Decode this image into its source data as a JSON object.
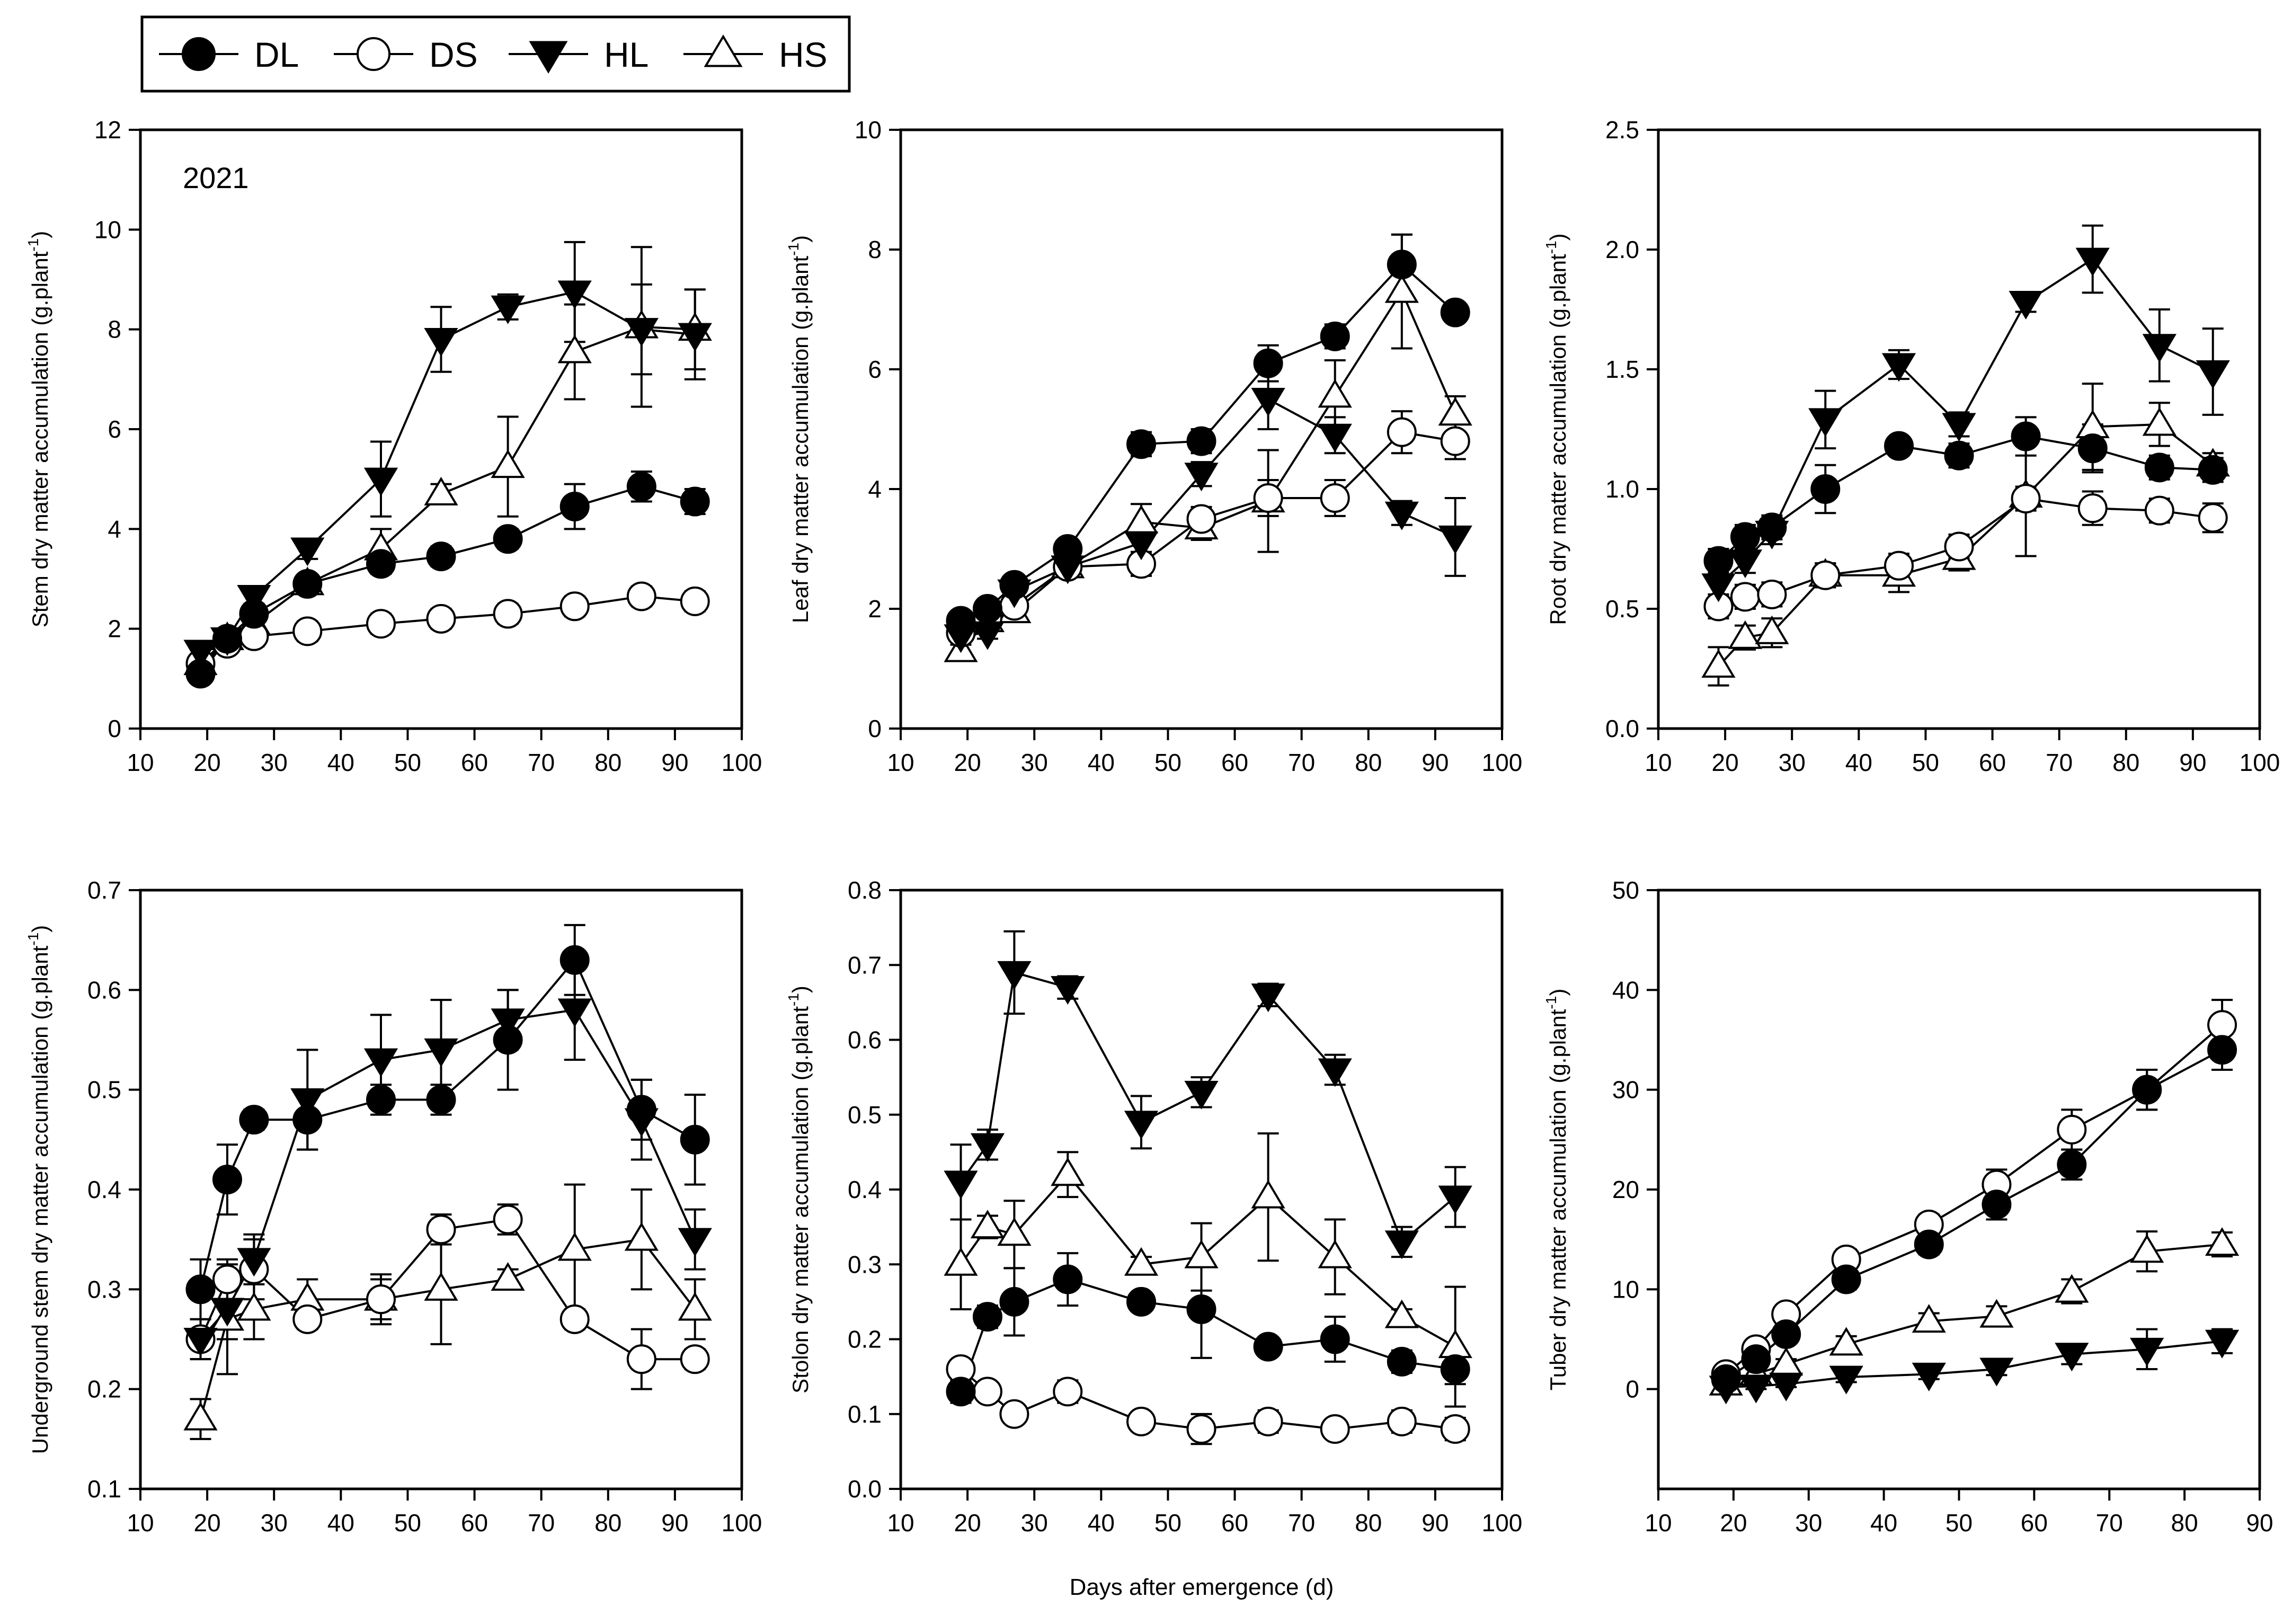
{
  "legend": [
    {
      "label": "DL",
      "marker": "circle",
      "fill": "#000000"
    },
    {
      "label": "DS",
      "marker": "circle",
      "fill": "#ffffff"
    },
    {
      "label": "HL",
      "marker": "triangle-down",
      "fill": "#000000"
    },
    {
      "label": "HS",
      "marker": "triangle-up",
      "fill": "#ffffff"
    }
  ],
  "xlabel_common": "Days after emergence (d)",
  "chart_data": [
    {
      "type": "line",
      "panel_label": "2021",
      "ylabel": "Stem dry matter accumulation (g.plant",
      "ylabel_sup": "-1",
      "ylabel_close": ")",
      "xlim": [
        10,
        100
      ],
      "xticks": [
        10,
        20,
        30,
        40,
        50,
        60,
        70,
        80,
        90,
        100
      ],
      "ylim": [
        0,
        12
      ],
      "yticks": [
        0,
        2,
        4,
        6,
        8,
        10,
        12
      ],
      "series": [
        {
          "name": "DL",
          "x": [
            19,
            23,
            27,
            35,
            46,
            55,
            65,
            75,
            85,
            93
          ],
          "y": [
            1.1,
            1.8,
            2.3,
            2.9,
            3.3,
            3.45,
            3.8,
            4.45,
            4.85,
            4.55
          ],
          "err": [
            0.1,
            0.1,
            0.15,
            0.15,
            0.2,
            0.2,
            0.2,
            0.45,
            0.3,
            0.25
          ]
        },
        {
          "name": "DS",
          "x": [
            19,
            23,
            27,
            35,
            46,
            55,
            65,
            75,
            85,
            93
          ],
          "y": [
            1.3,
            1.7,
            1.85,
            1.95,
            2.1,
            2.2,
            2.3,
            2.45,
            2.65,
            2.55
          ],
          "err": [
            0.1,
            0.15,
            0.2,
            0.2,
            0.2,
            0.2,
            0.2,
            0.2,
            0.2,
            0.2
          ]
        },
        {
          "name": "HL",
          "x": [
            19,
            23,
            27,
            35,
            46,
            55,
            65,
            75,
            85,
            93
          ],
          "y": [
            1.55,
            1.8,
            2.65,
            3.6,
            5.0,
            7.8,
            8.45,
            8.75,
            8.0,
            7.9
          ],
          "err": [
            0.1,
            0.1,
            0.15,
            0.2,
            0.75,
            0.65,
            0.25,
            1.0,
            0.9,
            0.9
          ]
        },
        {
          "name": "HS",
          "x": [
            19,
            23,
            27,
            35,
            46,
            55,
            65,
            75,
            85,
            93
          ],
          "y": [
            1.3,
            1.8,
            2.1,
            2.9,
            3.6,
            4.7,
            5.25,
            7.55,
            8.05,
            8.0
          ],
          "err": [
            0.1,
            0.1,
            0.15,
            0.15,
            0.4,
            0.2,
            1.0,
            0.95,
            1.6,
            0.8
          ]
        }
      ]
    },
    {
      "type": "line",
      "panel_label": "",
      "ylabel": "Leaf dry matter accumulation (g.plant",
      "ylabel_sup": "-1",
      "ylabel_close": ")",
      "xlim": [
        10,
        100
      ],
      "xticks": [
        10,
        20,
        30,
        40,
        50,
        60,
        70,
        80,
        90,
        100
      ],
      "ylim": [
        0,
        10
      ],
      "yticks": [
        0,
        2,
        4,
        6,
        8,
        10
      ],
      "series": [
        {
          "name": "DL",
          "x": [
            19,
            23,
            27,
            35,
            46,
            55,
            65,
            75,
            85,
            93
          ],
          "y": [
            1.8,
            2.0,
            2.4,
            3.0,
            4.75,
            4.8,
            6.1,
            6.55,
            7.75,
            6.95
          ],
          "err": [
            0.1,
            0.15,
            0.15,
            0.15,
            0.2,
            0.2,
            0.3,
            0.2,
            0.5,
            0.15
          ]
        },
        {
          "name": "DS",
          "x": [
            19,
            23,
            27,
            35,
            46,
            55,
            65,
            75,
            85,
            93
          ],
          "y": [
            1.6,
            1.85,
            2.05,
            2.7,
            2.75,
            3.5,
            3.85,
            3.85,
            4.95,
            4.8
          ],
          "err": [
            0.1,
            0.1,
            0.15,
            0.15,
            0.2,
            0.2,
            0.3,
            0.3,
            0.35,
            0.3
          ]
        },
        {
          "name": "HL",
          "x": [
            19,
            23,
            27,
            35,
            46,
            55,
            65,
            75,
            85,
            93
          ],
          "y": [
            1.55,
            1.6,
            2.3,
            2.7,
            3.1,
            4.25,
            5.5,
            4.9,
            3.6,
            3.2
          ],
          "err": [
            0.1,
            0.1,
            0.15,
            0.15,
            0.2,
            0.2,
            0.5,
            0.3,
            0.2,
            0.65
          ]
        },
        {
          "name": "HS",
          "x": [
            19,
            23,
            27,
            35,
            46,
            55,
            65,
            75,
            85,
            93
          ],
          "y": [
            1.3,
            1.8,
            1.95,
            2.7,
            3.45,
            3.35,
            3.8,
            5.55,
            7.3,
            5.25
          ],
          "err": [
            0.1,
            0.1,
            0.15,
            0.15,
            0.3,
            0.2,
            0.85,
            0.6,
            0.95,
            0.3
          ]
        }
      ]
    },
    {
      "type": "line",
      "panel_label": "",
      "ylabel": "Root dry matter accumulation (g.plant",
      "ylabel_sup": "-1",
      "ylabel_close": ")",
      "xlim": [
        10,
        100
      ],
      "xticks": [
        10,
        20,
        30,
        40,
        50,
        60,
        70,
        80,
        90,
        100
      ],
      "ylim": [
        0,
        2.5
      ],
      "yticks": [
        0.0,
        0.5,
        1.0,
        1.5,
        2.0,
        2.5
      ],
      "ytick_labels": [
        "0.0",
        "0.5",
        "1.0",
        "1.5",
        "2.0",
        "2.5"
      ],
      "series": [
        {
          "name": "DL",
          "x": [
            19,
            23,
            27,
            35,
            46,
            55,
            65,
            75,
            85,
            93
          ],
          "y": [
            0.7,
            0.8,
            0.84,
            1.0,
            1.18,
            1.14,
            1.22,
            1.17,
            1.09,
            1.08
          ],
          "err": [
            0.05,
            0.05,
            0.05,
            0.1,
            0.03,
            0.05,
            0.08,
            0.1,
            0.05,
            0.05
          ]
        },
        {
          "name": "DS",
          "x": [
            19,
            23,
            27,
            35,
            46,
            55,
            65,
            75,
            85,
            93
          ],
          "y": [
            0.51,
            0.55,
            0.56,
            0.64,
            0.68,
            0.76,
            0.96,
            0.92,
            0.91,
            0.88
          ],
          "err": [
            0.05,
            0.05,
            0.05,
            0.05,
            0.05,
            0.05,
            0.05,
            0.07,
            0.05,
            0.06
          ]
        },
        {
          "name": "HL",
          "x": [
            19,
            23,
            27,
            35,
            46,
            55,
            65,
            75,
            85,
            93
          ],
          "y": [
            0.6,
            0.7,
            0.82,
            1.29,
            1.52,
            1.27,
            1.78,
            1.96,
            1.6,
            1.49
          ],
          "err": [
            0.05,
            0.05,
            0.05,
            0.12,
            0.06,
            0.05,
            0.04,
            0.14,
            0.15,
            0.18
          ]
        },
        {
          "name": "HS",
          "x": [
            19,
            23,
            27,
            35,
            46,
            55,
            65,
            75,
            85,
            93
          ],
          "y": [
            0.26,
            0.38,
            0.4,
            0.64,
            0.64,
            0.71,
            0.97,
            1.26,
            1.27,
            1.1
          ],
          "err": [
            0.08,
            0.05,
            0.06,
            0.05,
            0.07,
            0.05,
            0.25,
            0.18,
            0.09,
            0.05
          ]
        }
      ]
    },
    {
      "type": "line",
      "panel_label": "",
      "ylabel": "Underground stem dry matter accumulation (g.plant",
      "ylabel_sup": "-1",
      "ylabel_close": ")",
      "xlim": [
        10,
        100
      ],
      "xticks": [
        10,
        20,
        30,
        40,
        50,
        60,
        70,
        80,
        90,
        100
      ],
      "ylim": [
        0.1,
        0.7
      ],
      "yticks": [
        0.1,
        0.2,
        0.3,
        0.4,
        0.5,
        0.6,
        0.7
      ],
      "ytick_labels": [
        "0.1",
        "0.2",
        "0.3",
        "0.4",
        "0.5",
        "0.6",
        "0.7"
      ],
      "series": [
        {
          "name": "DL",
          "x": [
            19,
            23,
            27,
            35,
            46,
            55,
            65,
            75,
            85,
            93
          ],
          "y": [
            0.3,
            0.41,
            0.47,
            0.47,
            0.49,
            0.49,
            0.55,
            0.63,
            0.48,
            0.45
          ],
          "err": [
            0.03,
            0.035,
            0.01,
            0.03,
            0.015,
            0.015,
            0.05,
            0.035,
            0.03,
            0.045
          ]
        },
        {
          "name": "DS",
          "x": [
            19,
            23,
            27,
            35,
            46,
            55,
            65,
            75,
            85,
            93
          ],
          "y": [
            0.25,
            0.31,
            0.32,
            0.27,
            0.29,
            0.36,
            0.37,
            0.27,
            0.23,
            0.23
          ],
          "err": [
            0.02,
            0.02,
            0.03,
            0.01,
            0.02,
            0.015,
            0.015,
            0.01,
            0.03,
            0.01
          ]
        },
        {
          "name": "HL",
          "x": [
            19,
            23,
            27,
            35,
            46,
            55,
            65,
            75,
            85,
            93
          ],
          "y": [
            0.25,
            0.28,
            0.33,
            0.49,
            0.53,
            0.54,
            0.57,
            0.58,
            0.47,
            0.35
          ],
          "err": [
            0.02,
            0.03,
            0.025,
            0.05,
            0.045,
            0.05,
            0.03,
            0.05,
            0.04,
            0.03
          ]
        },
        {
          "name": "HS",
          "x": [
            19,
            23,
            27,
            35,
            46,
            55,
            65,
            75,
            85,
            93
          ],
          "y": [
            0.17,
            0.27,
            0.28,
            0.29,
            0.29,
            0.3,
            0.31,
            0.34,
            0.35,
            0.28
          ],
          "err": [
            0.02,
            0.055,
            0.03,
            0.02,
            0.025,
            0.055,
            0.01,
            0.065,
            0.05,
            0.03
          ]
        }
      ]
    },
    {
      "type": "line",
      "panel_label": "",
      "ylabel": "Stolon dry matter accumulation (g.plant",
      "ylabel_sup": "-1",
      "ylabel_close": ")",
      "xlim": [
        10,
        100
      ],
      "xticks": [
        10,
        20,
        30,
        40,
        50,
        60,
        70,
        80,
        90,
        100
      ],
      "ylim": [
        0,
        0.8
      ],
      "yticks": [
        0.0,
        0.1,
        0.2,
        0.3,
        0.4,
        0.5,
        0.6,
        0.7,
        0.8
      ],
      "ytick_labels": [
        "0.0",
        "0.1",
        "0.2",
        "0.3",
        "0.4",
        "0.5",
        "0.6",
        "0.7",
        "0.8"
      ],
      "series": [
        {
          "name": "DL",
          "x": [
            19,
            23,
            27,
            35,
            46,
            55,
            65,
            75,
            85,
            93
          ],
          "y": [
            0.13,
            0.23,
            0.25,
            0.28,
            0.25,
            0.24,
            0.19,
            0.2,
            0.17,
            0.16
          ],
          "err": [
            0.015,
            0.015,
            0.045,
            0.035,
            0.01,
            0.065,
            0.01,
            0.03,
            0.015,
            0.02
          ]
        },
        {
          "name": "DS",
          "x": [
            19,
            23,
            27,
            35,
            46,
            55,
            65,
            75,
            85,
            93
          ],
          "y": [
            0.16,
            0.13,
            0.1,
            0.13,
            0.09,
            0.08,
            0.09,
            0.08,
            0.09,
            0.08
          ],
          "err": [
            0.01,
            0.01,
            0.01,
            0.015,
            0.01,
            0.02,
            0.015,
            0.01,
            0.015,
            0.015
          ]
        },
        {
          "name": "HL",
          "x": [
            19,
            23,
            27,
            35,
            46,
            55,
            65,
            75,
            85,
            93
          ],
          "y": [
            0.41,
            0.46,
            0.69,
            0.67,
            0.49,
            0.53,
            0.66,
            0.56,
            0.33,
            0.39
          ],
          "err": [
            0.05,
            0.02,
            0.055,
            0.015,
            0.035,
            0.02,
            0.015,
            0.02,
            0.02,
            0.04
          ]
        },
        {
          "name": "HS",
          "x": [
            19,
            23,
            27,
            35,
            46,
            55,
            65,
            75,
            85,
            93
          ],
          "y": [
            0.3,
            0.35,
            0.34,
            0.42,
            0.3,
            0.31,
            0.39,
            0.31,
            0.23,
            0.19
          ],
          "err": [
            0.06,
            0.015,
            0.045,
            0.03,
            0.01,
            0.045,
            0.085,
            0.05,
            0.01,
            0.08
          ]
        }
      ]
    },
    {
      "type": "line",
      "panel_label": "",
      "ylabel": "Tuber dry matter accumulation (g.plant",
      "ylabel_sup": "-1",
      "ylabel_close": ")",
      "xlim": [
        10,
        90
      ],
      "xticks": [
        10,
        20,
        30,
        40,
        50,
        60,
        70,
        80,
        90
      ],
      "ylim": [
        -10,
        50
      ],
      "yticks": [
        0,
        10,
        20,
        30,
        40,
        50
      ],
      "series": [
        {
          "name": "DL",
          "x": [
            19,
            23,
            27,
            35,
            46,
            55,
            65,
            75,
            85
          ],
          "y": [
            1.0,
            3.0,
            5.5,
            11.0,
            14.5,
            18.5,
            22.5,
            30.0,
            34.0
          ],
          "err": [
            0.3,
            0.5,
            0.8,
            1.0,
            1.0,
            1.5,
            1.5,
            2.0,
            2.0
          ]
        },
        {
          "name": "DS",
          "x": [
            19,
            23,
            27,
            35,
            46,
            55,
            65,
            75,
            85
          ],
          "y": [
            1.5,
            4.0,
            7.5,
            13.0,
            16.5,
            20.5,
            26.0,
            30.0,
            36.5
          ],
          "err": [
            0.3,
            0.5,
            0.8,
            1.0,
            1.0,
            1.5,
            2.0,
            2.0,
            2.5
          ]
        },
        {
          "name": "HL",
          "x": [
            19,
            23,
            27,
            35,
            46,
            55,
            65,
            75,
            85
          ],
          "y": [
            0.2,
            0.3,
            0.5,
            1.2,
            1.5,
            2.0,
            3.5,
            4.0,
            4.8
          ],
          "err": [
            0.2,
            0.3,
            0.3,
            0.5,
            0.5,
            0.6,
            1.0,
            2.0,
            1.2
          ]
        },
        {
          "name": "HS",
          "x": [
            19,
            23,
            27,
            35,
            46,
            55,
            65,
            75,
            85
          ],
          "y": [
            0.5,
            1.5,
            2.5,
            4.5,
            6.8,
            7.3,
            9.8,
            13.8,
            14.5
          ],
          "err": [
            0.3,
            0.5,
            0.5,
            0.8,
            0.8,
            1.0,
            1.2,
            2.0,
            1.2
          ]
        }
      ]
    }
  ]
}
